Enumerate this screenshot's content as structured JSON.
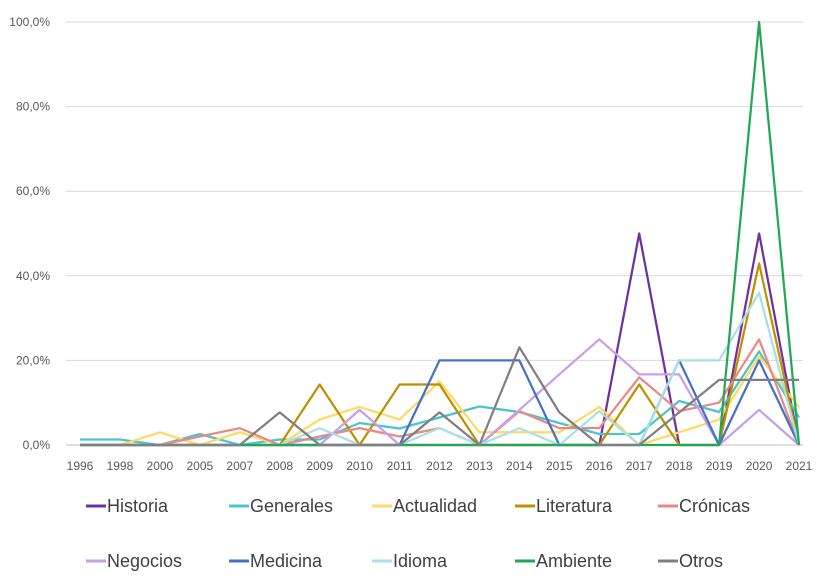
{
  "chart_data": {
    "type": "line",
    "title": "",
    "xlabel": "",
    "ylabel": "",
    "ylim": [
      0,
      100
    ],
    "y_ticks": [
      "0,0%",
      "20,0%",
      "40,0%",
      "60,0%",
      "80,0%",
      "100,0%"
    ],
    "grid": "horizontal",
    "legend_position": "bottom",
    "categories": [
      "1996",
      "1998",
      "2000",
      "2005",
      "2007",
      "2008",
      "2009",
      "2010",
      "2011",
      "2012",
      "2013",
      "2014",
      "2015",
      "2016",
      "2017",
      "2018",
      "2019",
      "2020",
      "2021"
    ],
    "series": [
      {
        "name": "Historia",
        "color": "#7030A0",
        "values": [
          0,
          0,
          0,
          0,
          0,
          0,
          0,
          0,
          0,
          0,
          0,
          0,
          0,
          0,
          50,
          0,
          0,
          50,
          0
        ]
      },
      {
        "name": "Generales",
        "color": "#4BC4CD",
        "values": [
          1.3,
          1.3,
          0,
          2.6,
          0,
          1.3,
          1.3,
          5.2,
          3.9,
          6.5,
          9.1,
          7.8,
          5.2,
          2.6,
          2.6,
          10.4,
          7.8,
          22.1,
          6.5
        ]
      },
      {
        "name": "Actualidad",
        "color": "#FFD966",
        "values": [
          0,
          0,
          3,
          0,
          3,
          0,
          6,
          9,
          6,
          15,
          3,
          3,
          3,
          9,
          0,
          3,
          6,
          21,
          9
        ]
      },
      {
        "name": "Literatura",
        "color": "#BF9000",
        "values": [
          0,
          0,
          0,
          0,
          0,
          0,
          14.3,
          0,
          14.3,
          14.3,
          0,
          0,
          0,
          0,
          14.3,
          0,
          0,
          42.9,
          0
        ]
      },
      {
        "name": "Crónicas",
        "color": "#E88A84",
        "values": [
          0,
          0,
          0,
          2,
          4,
          0,
          2,
          4,
          2,
          4,
          0,
          8,
          4,
          4,
          16,
          8,
          10,
          25,
          0
        ]
      },
      {
        "name": "Negocios",
        "color": "#C9A0E8",
        "values": [
          0,
          0,
          0,
          0,
          0,
          0,
          0,
          8.3,
          0,
          0,
          0,
          8.3,
          16.7,
          25,
          16.7,
          16.7,
          0,
          8.3,
          0
        ]
      },
      {
        "name": "Medicina",
        "color": "#4472C4",
        "values": [
          0,
          0,
          0,
          0,
          0,
          0,
          0,
          0,
          0,
          20,
          20,
          20,
          0,
          0,
          0,
          20,
          0,
          20,
          0
        ]
      },
      {
        "name": "Idioma",
        "color": "#A8E0E4",
        "values": [
          0,
          0,
          0,
          0,
          0,
          0,
          4,
          0,
          0,
          4,
          0,
          4,
          0,
          8,
          0,
          20,
          20,
          36,
          0
        ]
      },
      {
        "name": "Ambiente",
        "color": "#21A857",
        "values": [
          0,
          0,
          0,
          0,
          0,
          0,
          0,
          0,
          0,
          0,
          0,
          0,
          0,
          0,
          0,
          0,
          0,
          100,
          0
        ]
      },
      {
        "name": "Otros",
        "color": "#808080",
        "values": [
          0,
          0,
          0,
          0,
          0,
          7.7,
          0,
          0,
          0,
          7.7,
          0,
          23.1,
          7.7,
          0,
          0,
          7.7,
          15.4,
          15.4,
          15.4
        ]
      }
    ]
  }
}
